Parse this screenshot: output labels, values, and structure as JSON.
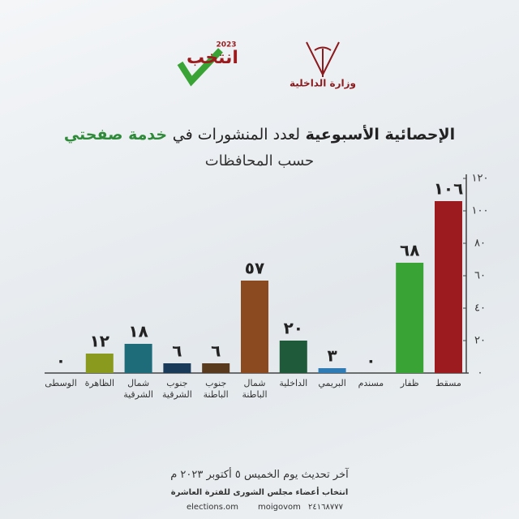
{
  "header": {
    "ministry": "وزارة الداخلية",
    "brand": "انتخب",
    "year": "2023"
  },
  "chart_data": {
    "type": "bar",
    "title": [
      "الإحصائية الأسبوعية",
      "لعدد المنشورات في",
      "خدمة صفحتي"
    ],
    "subtitle": "حسب المحافظات",
    "categories": [
      "مسقط",
      "ظفار",
      "مسندم",
      "البريمي",
      "الداخلية",
      "شمال الباطنة",
      "جنوب الباطنة",
      "جنوب الشرقية",
      "شمال الشرقية",
      "الظاهرة",
      "الوسطى"
    ],
    "values": [
      106,
      68,
      0,
      3,
      20,
      57,
      6,
      6,
      18,
      12,
      0
    ],
    "value_labels": [
      "١٠٦",
      "٦٨",
      "٠",
      "٣",
      "٢٠",
      "٥٧",
      "٦",
      "٦",
      "١٨",
      "١٢",
      "٠"
    ],
    "colors": [
      "#9b1b1e",
      "#3aa335",
      "#3aa335",
      "#2e7bb5",
      "#1f5a3a",
      "#8b4a1f",
      "#5a3a1f",
      "#1a3a5a",
      "#1e6b7a",
      "#8a9a1e",
      "#8a9a1e"
    ],
    "ylim": [
      0,
      120
    ],
    "yticks": [
      {
        "value": 0,
        "label": "٠"
      },
      {
        "value": 20,
        "label": "٢٠"
      },
      {
        "value": 40,
        "label": "٤٠"
      },
      {
        "value": 60,
        "label": "٦٠"
      },
      {
        "value": 80,
        "label": "٨٠"
      },
      {
        "value": 100,
        "label": "١٠٠"
      },
      {
        "value": 120,
        "label": "١٢٠"
      }
    ]
  },
  "footer": {
    "updated": "آخر تحديث يوم الخميس ٥ أكتوبر ٢٠٢٣ م",
    "line": "انتخاب أعضاء مجلس الشورى للفترة العاشرة",
    "site": "elections.om",
    "handle": "moigovom",
    "phone": "٢٤١٦٨٧٧٧"
  }
}
